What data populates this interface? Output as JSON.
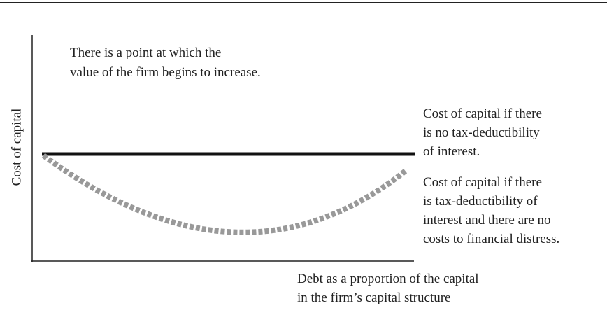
{
  "diagram": {
    "y_axis_label": "Cost of capital",
    "x_axis_label": [
      "Debt as a proportion of the capital",
      "in the firm’s capital structure"
    ],
    "top_note": [
      "There is a point at which the",
      "value of the firm begins to increase."
    ],
    "solid_line_label": [
      "Cost of capital if there",
      "is no tax-deductibility",
      "of interest."
    ],
    "dashed_line_label": [
      "Cost of capital if there",
      "is tax-deductibility of",
      "interest and there are no",
      "costs to financial distress."
    ]
  }
}
